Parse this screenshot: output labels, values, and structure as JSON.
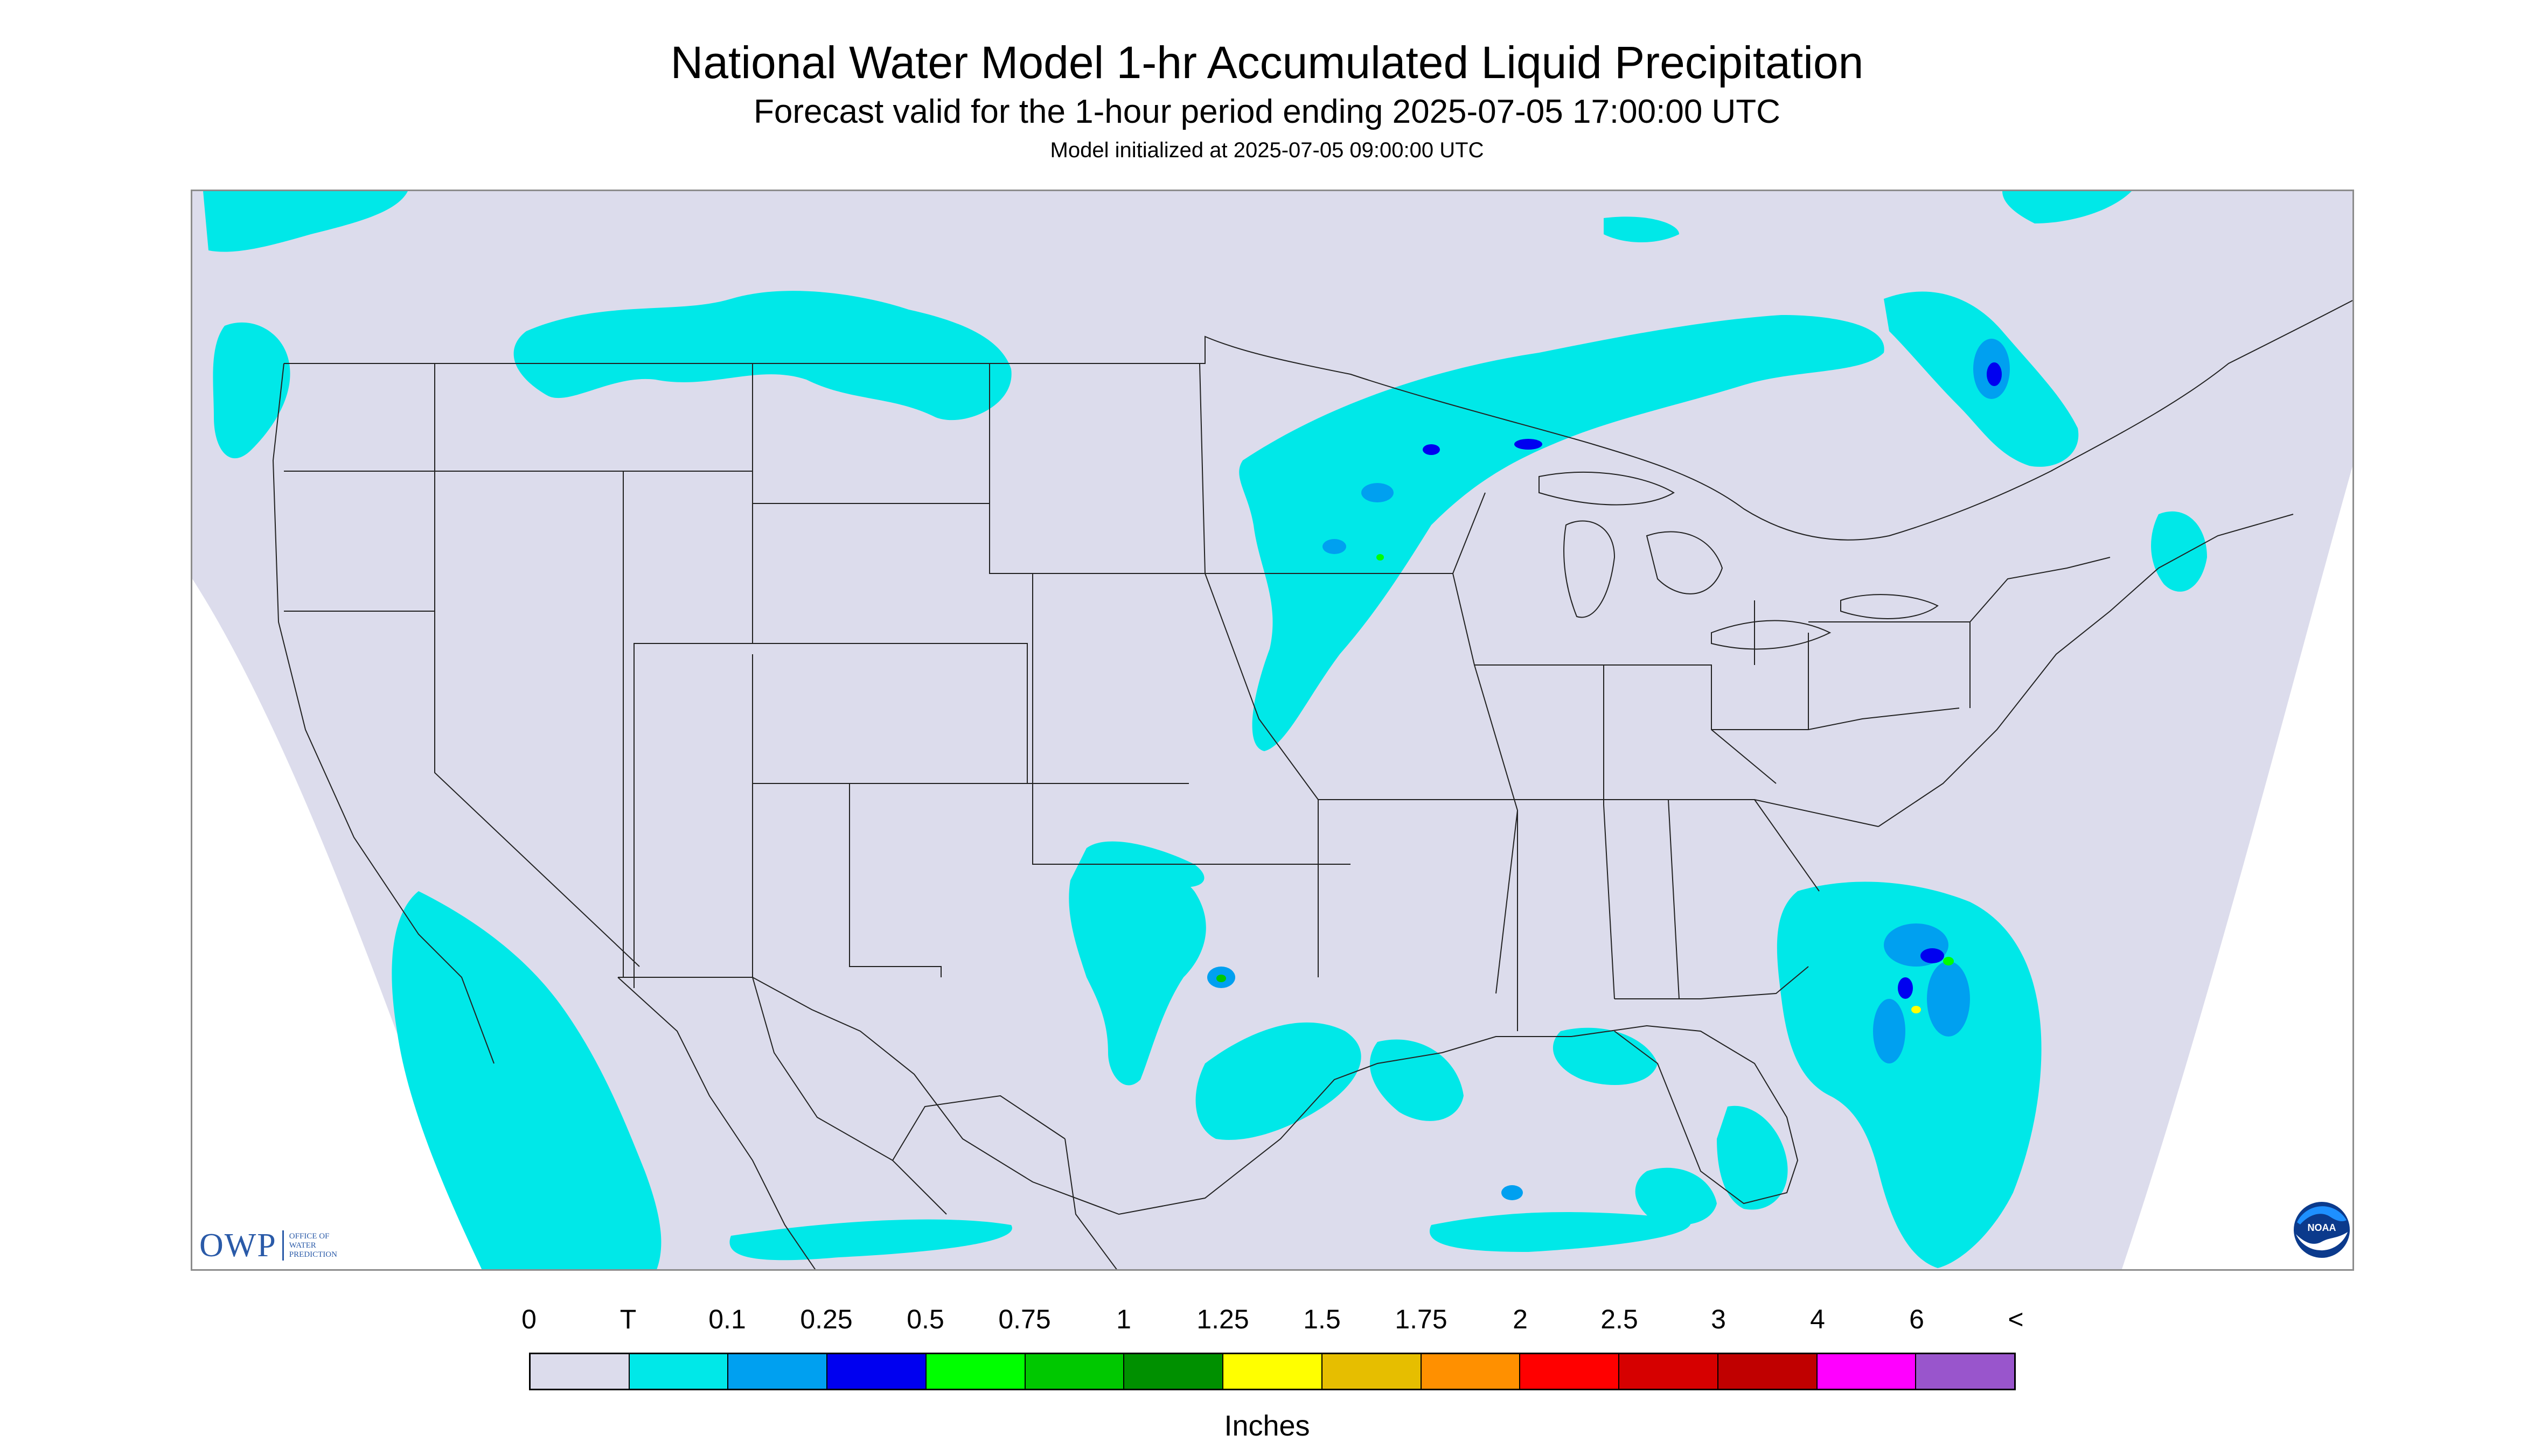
{
  "title": "National Water Model 1-hr Accumulated Liquid Precipitation",
  "subtitle": "Forecast valid for the 1-hour period ending 2025-07-05 17:00:00 UTC",
  "init_line": "Model initialized at 2025-07-05 09:00:00 UTC",
  "owp_logo": {
    "main": "OWP",
    "sub_lines": [
      "OFFICE OF",
      "WATER",
      "PREDICTION"
    ],
    "color": "#2a5aa8"
  },
  "noaa_logo": {
    "text": "NOAA",
    "icon": "noaa-logo-icon"
  },
  "legend": {
    "units": "Inches",
    "labels": [
      "0",
      "T",
      "0.1",
      "0.25",
      "0.5",
      "0.75",
      "1",
      "1.25",
      "1.5",
      "1.75",
      "2",
      "2.5",
      "3",
      "4",
      "6",
      "<"
    ],
    "colors": [
      "#dcdcec",
      "#00e8e8",
      "#00a0f0",
      "#0000f0",
      "#00ff00",
      "#00c800",
      "#009000",
      "#ffff00",
      "#e6be00",
      "#ff9000",
      "#ff0000",
      "#d60000",
      "#c00000",
      "#ff00ff",
      "#9955cc"
    ]
  },
  "map": {
    "background": "#dcdcec",
    "light_precip_color": "#00e8e8",
    "boundary_color": "#222222"
  }
}
